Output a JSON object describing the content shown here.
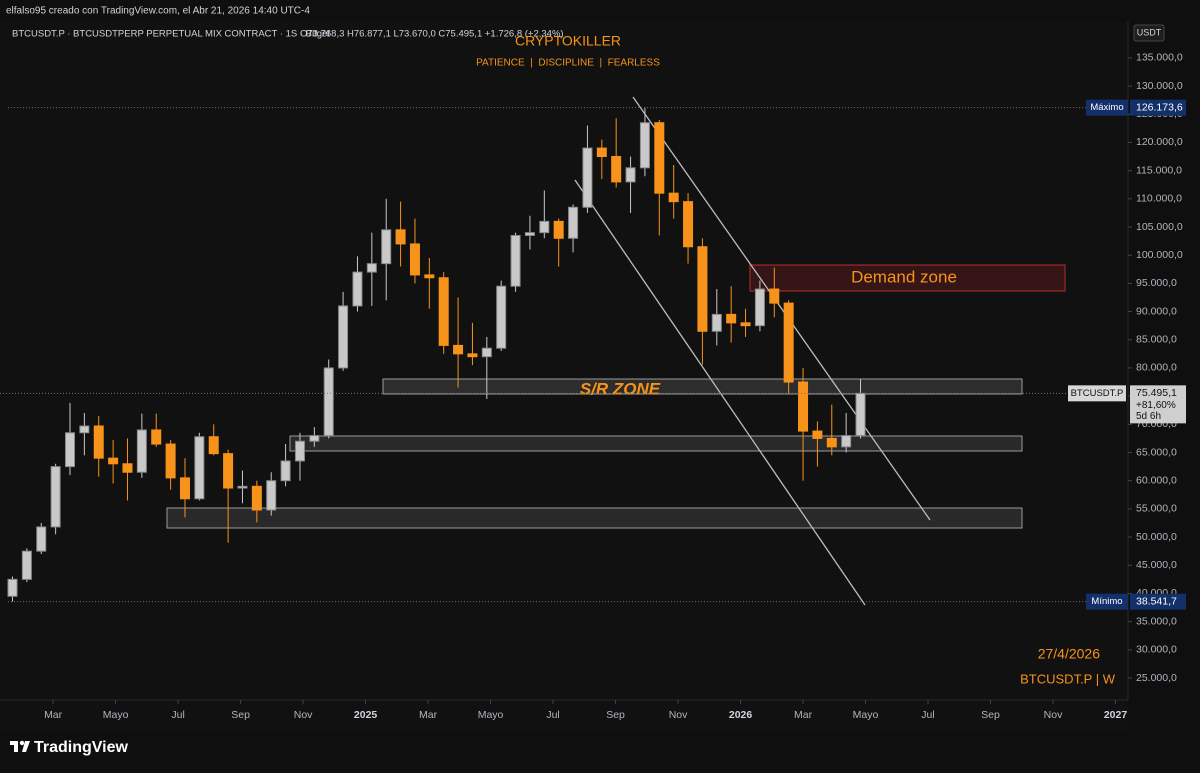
{
  "header": {
    "caption": "elfalso95 creado con TradingView.com, el Abr 21, 2026 14:40 UTC-4",
    "symbol": "BTCUSDT.P · BTCUSDTPERP PERPETUAL MIX CONTRACT · 1S · Bitget",
    "ohlc": "O73.768,3  H76.877,1  L73.670,0  C75.495,1  +1.726,8 (+2,34%)"
  },
  "footer": {
    "brand": "TradingView"
  },
  "chart_data": {
    "type": "candlestick",
    "title": "CRYPTOKILLER",
    "subtitle": "PATIENCE  |  DISCIPLINE  |  FEARLESS",
    "currency": "USDT",
    "annotations": [
      "S/R ZONE",
      "Demand zone",
      "27/4/2026",
      "BTCUSDT.P | W"
    ],
    "up_color": "#c9c9c9",
    "down_color": "#f7931a",
    "xlim": [
      0.3,
      36.4
    ],
    "ylim": [
      21100,
      140300
    ],
    "xticks": [
      {
        "value": 2,
        "label": "Mar"
      },
      {
        "value": 4,
        "label": "Mayo"
      },
      {
        "value": 6,
        "label": "Jul"
      },
      {
        "value": 8,
        "label": "Sep"
      },
      {
        "value": 10,
        "label": "Nov"
      },
      {
        "value": 12,
        "label": "2025"
      },
      {
        "value": 14,
        "label": "Mar"
      },
      {
        "value": 16,
        "label": "Mayo"
      },
      {
        "value": 18,
        "label": "Jul"
      },
      {
        "value": 20,
        "label": "Sep"
      },
      {
        "value": 22,
        "label": "Nov"
      },
      {
        "value": 24,
        "label": "2026"
      },
      {
        "value": 26,
        "label": "Mar"
      },
      {
        "value": 28,
        "label": "Mayo"
      },
      {
        "value": 30,
        "label": "Jul"
      },
      {
        "value": 32,
        "label": "Sep"
      },
      {
        "value": 34,
        "label": "Nov"
      },
      {
        "value": 36,
        "label": "2027"
      }
    ],
    "yticks": [
      {
        "value": 25000,
        "label": "25.000,0"
      },
      {
        "value": 30000,
        "label": "30.000,0"
      },
      {
        "value": 35000,
        "label": "35.000,0"
      },
      {
        "value": 40000,
        "label": "40.000,0"
      },
      {
        "value": 45000,
        "label": "45.000,0"
      },
      {
        "value": 50000,
        "label": "50.000,0"
      },
      {
        "value": 55000,
        "label": "55.000,0"
      },
      {
        "value": 60000,
        "label": "60.000,0"
      },
      {
        "value": 65000,
        "label": "65.000,0"
      },
      {
        "value": 70000,
        "label": "70.000,0"
      },
      {
        "value": 75000,
        "label": "75.000,0"
      },
      {
        "value": 80000,
        "label": "80.000,0"
      },
      {
        "value": 85000,
        "label": "85.000,0"
      },
      {
        "value": 90000,
        "label": "90.000,0"
      },
      {
        "value": 95000,
        "label": "95.000,0"
      },
      {
        "value": 100000,
        "label": "100.000,0"
      },
      {
        "value": 105000,
        "label": "105.000,0"
      },
      {
        "value": 110000,
        "label": "110.000,0"
      },
      {
        "value": 115000,
        "label": "115.000,0"
      },
      {
        "value": 120000,
        "label": "120.000,0"
      },
      {
        "value": 125000,
        "label": "125.000,0"
      },
      {
        "value": 130000,
        "label": "130.000,0"
      },
      {
        "value": 135000,
        "label": "135.000,0"
      }
    ],
    "markers": [
      {
        "name": "Máximo",
        "value": 126173.6,
        "value_label": "126.173,6"
      },
      {
        "name": "Mínimo",
        "value": 38541.7,
        "value_label": "38.541,7"
      }
    ],
    "last_price": {
      "name": "BTCUSDT.P",
      "value": 75495.1,
      "value_label": "75.495,1",
      "change": "+81,60%",
      "countdown": "5d 6h"
    },
    "candles": {
      "x": [
        0.7,
        1.16,
        1.62,
        2.08,
        2.54,
        3.0,
        3.46,
        3.92,
        4.38,
        4.84,
        5.3,
        5.76,
        6.22,
        6.68,
        7.14,
        7.6,
        8.06,
        8.52,
        8.98,
        9.44,
        9.9,
        10.36,
        10.82,
        11.28,
        11.74,
        12.2,
        12.66,
        13.12,
        13.58,
        14.04,
        14.5,
        14.96,
        15.42,
        15.88,
        16.34,
        16.8,
        17.26,
        17.72,
        18.18,
        18.64,
        19.1,
        19.56,
        20.02,
        20.48,
        20.94,
        21.4,
        21.86,
        22.32,
        22.78,
        23.24,
        23.7,
        24.16,
        24.62,
        25.08,
        25.54,
        26.0,
        26.46,
        26.92,
        27.38,
        27.84
      ],
      "open": [
        39500,
        42500,
        47500,
        51800,
        62500,
        68500,
        69700,
        64000,
        63000,
        61500,
        69000,
        66500,
        60500,
        56800,
        67800,
        64800,
        58700,
        59000,
        54800,
        60000,
        63500,
        67000,
        68000,
        80000,
        91000,
        97000,
        98500,
        104500,
        102000,
        96500,
        96000,
        84000,
        82500,
        82000,
        83500,
        94500,
        103500,
        104000,
        106000,
        103000,
        108500,
        119000,
        117500,
        113000,
        115500,
        123500,
        111000,
        109500,
        101500,
        86500,
        89500,
        88000,
        87500,
        94000,
        91500,
        77500,
        68800,
        67500,
        66000,
        68000
      ],
      "high": [
        43000,
        48000,
        52500,
        63000,
        73800,
        72000,
        71500,
        67200,
        67500,
        71900,
        71900,
        67200,
        64000,
        68500,
        70000,
        65500,
        61800,
        60000,
        61500,
        66500,
        68500,
        69500,
        81500,
        93500,
        99800,
        104000,
        110000,
        109500,
        106500,
        99500,
        97000,
        92500,
        88000,
        85500,
        95500,
        104000,
        107000,
        111500,
        106500,
        109000,
        123000,
        120500,
        124300,
        117500,
        126173.6,
        124000,
        116000,
        111000,
        103000,
        94000,
        94500,
        90500,
        95500,
        97800,
        92000,
        80000,
        70500,
        73500,
        72000,
        78000
      ],
      "low": [
        38541.7,
        42000,
        47000,
        50500,
        61000,
        64500,
        60700,
        59500,
        56500,
        60500,
        66000,
        58400,
        53500,
        56500,
        64500,
        49000,
        56000,
        52600,
        53800,
        59000,
        60000,
        66000,
        67500,
        79500,
        90000,
        91000,
        92000,
        98000,
        95000,
        90500,
        82500,
        76500,
        80500,
        74500,
        83000,
        93500,
        101000,
        103000,
        98000,
        100500,
        107500,
        113500,
        112000,
        107500,
        114000,
        103500,
        106500,
        98500,
        80600,
        84000,
        84500,
        85500,
        86500,
        89000,
        75500,
        60000,
        62500,
        64500,
        65000,
        67500
      ],
      "close": [
        42500,
        47500,
        51800,
        62500,
        68500,
        69700,
        64000,
        63000,
        61500,
        69000,
        66500,
        60500,
        56800,
        67800,
        64800,
        58700,
        59000,
        54800,
        60000,
        63500,
        67000,
        68000,
        80000,
        91000,
        97000,
        98500,
        104500,
        102000,
        96500,
        96000,
        84000,
        82500,
        82000,
        83500,
        94500,
        103500,
        104000,
        106000,
        103000,
        108500,
        119000,
        117500,
        113000,
        115500,
        123500,
        111000,
        109500,
        101500,
        86500,
        89500,
        88000,
        87500,
        94000,
        91500,
        77500,
        68800,
        67500,
        66000,
        68000,
        75495.1
      ]
    }
  }
}
